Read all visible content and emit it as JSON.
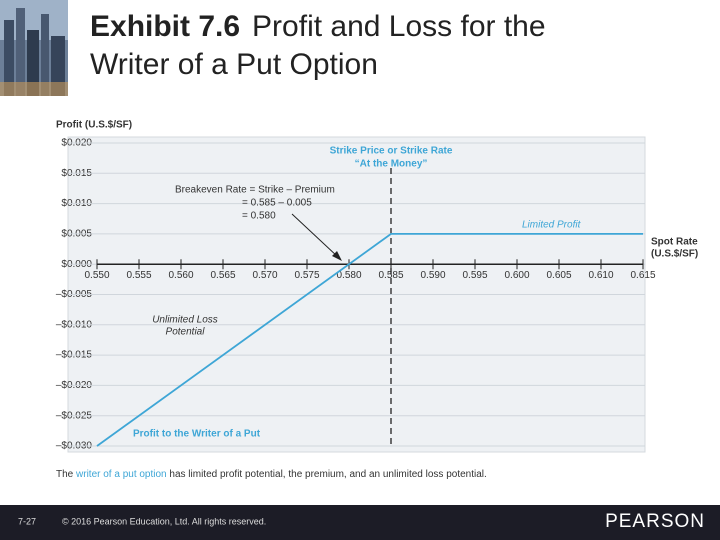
{
  "chart_data": {
    "type": "line",
    "title_bold": "Exhibit 7.6",
    "title_lines": [
      "Profit and Loss for the",
      "Writer of a Put Option"
    ],
    "y_label": "Profit (U.S.$/SF)",
    "x_label_lines": [
      "Spot Rate",
      "(U.S.$/SF)"
    ],
    "xlim": [
      0.55,
      0.615
    ],
    "ylim": [
      -0.03,
      0.02
    ],
    "xticks": [
      {
        "value": 0.55,
        "label": "0.550"
      },
      {
        "value": 0.555,
        "label": "0.555"
      },
      {
        "value": 0.56,
        "label": "0.560"
      },
      {
        "value": 0.565,
        "label": "0.565"
      },
      {
        "value": 0.57,
        "label": "0.570"
      },
      {
        "value": 0.575,
        "label": "0.575"
      },
      {
        "value": 0.58,
        "label": "0.580"
      },
      {
        "value": 0.585,
        "label": "0.585"
      },
      {
        "value": 0.59,
        "label": "0.590"
      },
      {
        "value": 0.595,
        "label": "0.595"
      },
      {
        "value": 0.6,
        "label": "0.600"
      },
      {
        "value": 0.605,
        "label": "0.605"
      },
      {
        "value": 0.61,
        "label": "0.610"
      },
      {
        "value": 0.615,
        "label": "0.615"
      }
    ],
    "yticks": [
      {
        "value": 0.02,
        "label": "$0.020"
      },
      {
        "value": 0.015,
        "label": "$0.015"
      },
      {
        "value": 0.01,
        "label": "$0.010"
      },
      {
        "value": 0.005,
        "label": "$0.005"
      },
      {
        "value": 0,
        "label": "$0.000"
      },
      {
        "value": -0.005,
        "label": "–$0.005"
      },
      {
        "value": -0.01,
        "label": "–$0.010"
      },
      {
        "value": -0.015,
        "label": "–$0.015"
      },
      {
        "value": -0.02,
        "label": "–$0.020"
      },
      {
        "value": -0.025,
        "label": "–$0.025"
      },
      {
        "value": -0.03,
        "label": "–$0.030"
      }
    ],
    "grid": true,
    "series": [
      {
        "name": "Profit to the Writer of a Put",
        "color": "#3ea6d6",
        "x": [
          0.55,
          0.585,
          0.615
        ],
        "values": [
          -0.03,
          0.005,
          0.005
        ]
      }
    ],
    "strike": 0.585,
    "strike_label_lines": [
      "Strike Price or Strike Rate",
      "“At the Money”"
    ],
    "breakeven_lines": [
      "Breakeven Rate = Strike – Premium",
      "= 0.585 – 0.005",
      "= 0.580"
    ],
    "limited_profit": "Limited Profit",
    "unlimited_loss_lines": [
      "Unlimited Loss",
      "Potential"
    ],
    "caption": {
      "prefix": "The ",
      "highlight": "writer of a put option",
      "suffix": " has limited profit potential, the premium, and an unlimited loss potential."
    }
  },
  "footer": {
    "page": "7-27",
    "copyright": "© 2016 Pearson Education, Ltd. All rights reserved.",
    "logo": "PEARSON"
  }
}
